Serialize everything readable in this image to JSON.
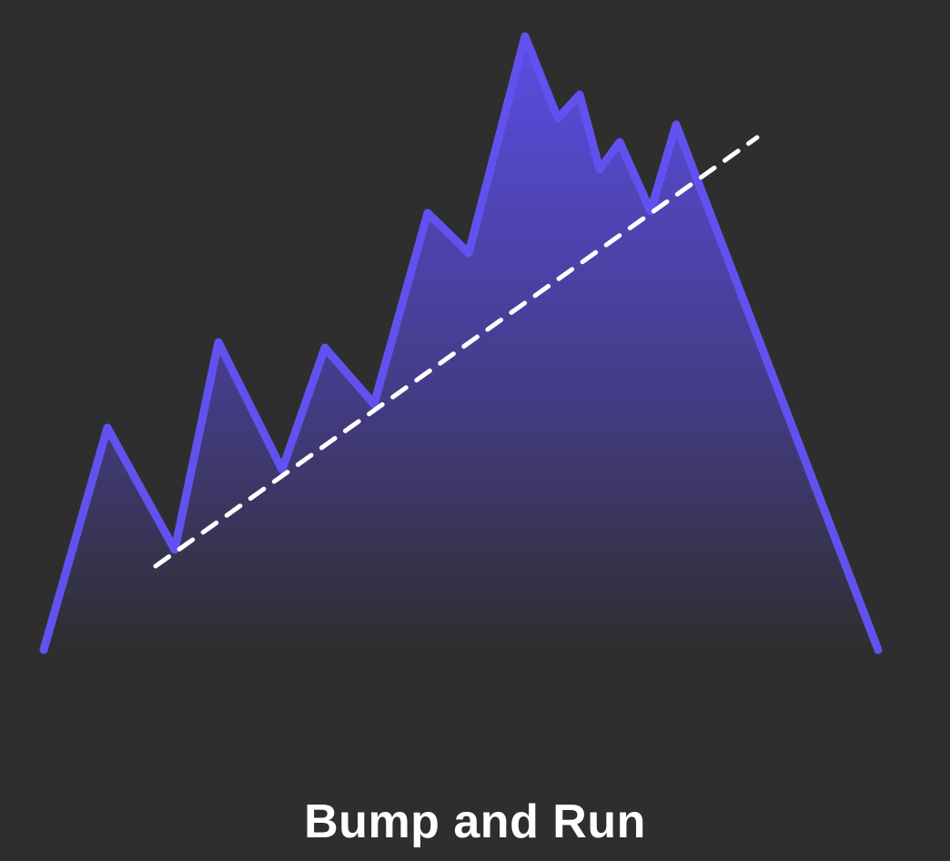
{
  "caption": "Bump and Run",
  "colors": {
    "background": "#2e2e2e",
    "price_line": "#6152f0",
    "fill_top": "#5b4de6",
    "fill_bottom": "#2e2e2e",
    "trend_line": "#ffffff",
    "caption_text": "#ffffff"
  }
}
